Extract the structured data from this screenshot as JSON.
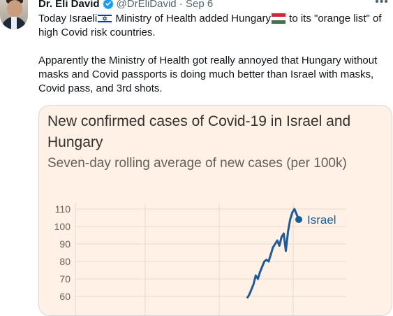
{
  "tweet": {
    "author_name": "Dr. Eli David",
    "handle": "@DrEliDavid",
    "separator": "·",
    "date": "Sep 6",
    "more_icon": "more-horizontal-icon",
    "verified_color": "#1d9bf0",
    "text_line1_before": "Today Israeli",
    "text_line1_middle": " Ministry of Health added Hungary",
    "text_line1_after": " to its \"orange list\" of high Covid risk countries.",
    "text_paragraph2": "Apparently the Ministry of Health got really annoyed that Hungary without masks and Covid passports is doing much better than Israel with masks, Covid pass, and 3rd shots."
  },
  "chart_data": {
    "type": "line",
    "title": "New confirmed cases of Covid-19 in Israel and Hungary",
    "subtitle": "Seven-day rolling average of new cases (per 100k)",
    "y_ticks": [
      110,
      100,
      90,
      80,
      70,
      60
    ],
    "ylim": [
      60,
      110
    ],
    "grid": true,
    "series": [
      {
        "name": "Israel",
        "color": "#1f5a96",
        "values": [
          59,
          61,
          64,
          67,
          72,
          70,
          74,
          77,
          80,
          81,
          80,
          84,
          88,
          90,
          92,
          89,
          94,
          96,
          86,
          97,
          104,
          108,
          110,
          107,
          104
        ]
      }
    ],
    "background": "#fff1e5"
  }
}
